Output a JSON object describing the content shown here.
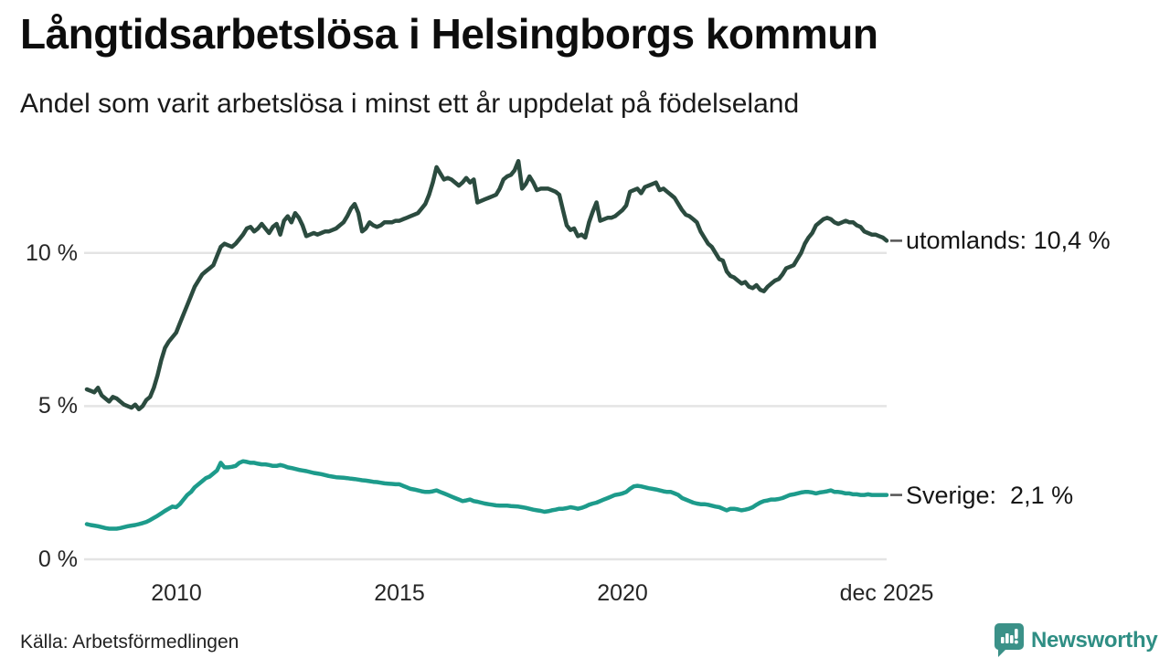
{
  "header": {
    "title": "Långtidsarbetslösa i Helsingborgs kommun",
    "subtitle": "Andel som varit arbetslösa i minst ett år uppdelat på födelseland"
  },
  "footer": {
    "source": "Källa: Arbetsförmedlingen",
    "brand": "Newsworthy"
  },
  "colors": {
    "grid": "#E4E4E4",
    "axis_text": "#262626",
    "label_dash": "#555555",
    "brand_teal": "#2F8E84",
    "logo_fill": "#3B9188"
  },
  "chart_data": {
    "type": "line",
    "title": "Långtidsarbetslösa i Helsingborgs kommun",
    "subtitle": "Andel som varit arbetslösa i minst ett år uppdelat på födelseland",
    "x_start": "2008-01",
    "x_end": "2025-12",
    "frequency": "monthly",
    "unit": "%",
    "ylim": [
      0,
      13.5
    ],
    "grid": "horizontal",
    "legend_position": "right-of-line-end",
    "yticks": [
      {
        "value": 0,
        "label": "0 %"
      },
      {
        "value": 5,
        "label": "5 %"
      },
      {
        "value": 10,
        "label": "10 %"
      }
    ],
    "xticks": [
      {
        "month_index": 24,
        "label": "2010"
      },
      {
        "month_index": 84,
        "label": "2015"
      },
      {
        "month_index": 144,
        "label": "2020"
      },
      {
        "month_index": 215,
        "label": "dec 2025"
      }
    ],
    "series": [
      {
        "name": "utomlands",
        "label": "utomlands: 10,4 %",
        "last_value": 10.4,
        "color": "#2B4B3F",
        "values": [
          5.55,
          5.5,
          5.45,
          5.6,
          5.35,
          5.25,
          5.15,
          5.3,
          5.25,
          5.15,
          5.05,
          5.0,
          4.95,
          5.05,
          4.9,
          5.0,
          5.2,
          5.3,
          5.6,
          6.0,
          6.5,
          6.9,
          7.1,
          7.25,
          7.4,
          7.7,
          8.0,
          8.3,
          8.6,
          8.9,
          9.1,
          9.3,
          9.4,
          9.5,
          9.6,
          9.9,
          10.2,
          10.3,
          10.25,
          10.2,
          10.3,
          10.45,
          10.6,
          10.8,
          10.85,
          10.7,
          10.8,
          10.95,
          10.8,
          10.65,
          10.85,
          10.95,
          10.6,
          11.05,
          11.2,
          11.0,
          11.3,
          11.15,
          10.9,
          10.55,
          10.6,
          10.65,
          10.6,
          10.65,
          10.7,
          10.7,
          10.75,
          10.8,
          10.9,
          11.0,
          11.2,
          11.45,
          11.6,
          11.3,
          10.7,
          10.8,
          11.0,
          10.9,
          10.85,
          10.9,
          11.0,
          11.0,
          11.0,
          11.05,
          11.05,
          11.1,
          11.15,
          11.2,
          11.25,
          11.3,
          11.45,
          11.6,
          11.9,
          12.3,
          12.8,
          12.6,
          12.4,
          12.45,
          12.4,
          12.3,
          12.2,
          12.3,
          12.45,
          12.3,
          12.4,
          11.65,
          11.7,
          11.75,
          11.8,
          11.85,
          11.9,
          12.1,
          12.4,
          12.5,
          12.55,
          12.7,
          13.0,
          12.1,
          12.25,
          12.5,
          12.3,
          12.05,
          12.1,
          12.1,
          12.1,
          12.05,
          12.0,
          11.9,
          11.4,
          10.9,
          10.75,
          10.8,
          10.55,
          10.6,
          10.5,
          11.0,
          11.35,
          11.65,
          11.05,
          11.1,
          11.15,
          11.15,
          11.2,
          11.3,
          11.4,
          11.55,
          12.0,
          12.05,
          12.1,
          11.95,
          12.15,
          12.2,
          12.25,
          12.3,
          12.05,
          12.1,
          12.0,
          11.9,
          11.8,
          11.6,
          11.4,
          11.25,
          11.2,
          11.1,
          11.0,
          10.7,
          10.5,
          10.3,
          10.2,
          10.0,
          9.8,
          9.75,
          9.4,
          9.25,
          9.2,
          9.1,
          9.0,
          9.05,
          8.9,
          8.85,
          8.95,
          8.8,
          8.75,
          8.9,
          9.0,
          9.1,
          9.15,
          9.3,
          9.5,
          9.55,
          9.6,
          9.8,
          10.0,
          10.3,
          10.5,
          10.65,
          10.9,
          11.0,
          11.1,
          11.15,
          11.1,
          11.0,
          10.95,
          11.0,
          11.05,
          11.0,
          11.0,
          10.9,
          10.85,
          10.7,
          10.65,
          10.6,
          10.6,
          10.55,
          10.5,
          10.4
        ]
      },
      {
        "name": "Sverige",
        "label": "Sverige:  2,1 %",
        "last_value": 2.1,
        "color": "#1D9B8B",
        "values": [
          1.15,
          1.12,
          1.1,
          1.08,
          1.05,
          1.02,
          1.0,
          1.0,
          1.0,
          1.02,
          1.05,
          1.08,
          1.1,
          1.12,
          1.15,
          1.18,
          1.22,
          1.28,
          1.35,
          1.42,
          1.5,
          1.58,
          1.65,
          1.72,
          1.7,
          1.8,
          1.95,
          2.1,
          2.2,
          2.35,
          2.45,
          2.55,
          2.65,
          2.7,
          2.8,
          2.9,
          3.15,
          3.0,
          3.0,
          3.02,
          3.05,
          3.15,
          3.2,
          3.18,
          3.15,
          3.15,
          3.12,
          3.1,
          3.1,
          3.08,
          3.05,
          3.05,
          3.08,
          3.05,
          3.0,
          2.98,
          2.95,
          2.92,
          2.9,
          2.88,
          2.85,
          2.82,
          2.8,
          2.78,
          2.75,
          2.72,
          2.7,
          2.68,
          2.67,
          2.66,
          2.65,
          2.63,
          2.62,
          2.6,
          2.58,
          2.57,
          2.55,
          2.53,
          2.52,
          2.5,
          2.48,
          2.47,
          2.46,
          2.45,
          2.45,
          2.4,
          2.35,
          2.3,
          2.28,
          2.25,
          2.22,
          2.2,
          2.2,
          2.22,
          2.25,
          2.2,
          2.15,
          2.1,
          2.05,
          2.0,
          1.95,
          1.9,
          1.92,
          1.95,
          1.9,
          1.88,
          1.85,
          1.82,
          1.8,
          1.78,
          1.76,
          1.75,
          1.75,
          1.75,
          1.74,
          1.73,
          1.72,
          1.7,
          1.68,
          1.65,
          1.62,
          1.6,
          1.58,
          1.55,
          1.57,
          1.6,
          1.62,
          1.65,
          1.65,
          1.67,
          1.7,
          1.68,
          1.65,
          1.68,
          1.72,
          1.78,
          1.82,
          1.85,
          1.9,
          1.95,
          2.0,
          2.05,
          2.1,
          2.12,
          2.15,
          2.2,
          2.3,
          2.38,
          2.4,
          2.38,
          2.35,
          2.32,
          2.3,
          2.28,
          2.25,
          2.22,
          2.2,
          2.2,
          2.15,
          2.1,
          2.0,
          1.95,
          1.9,
          1.85,
          1.82,
          1.8,
          1.8,
          1.78,
          1.75,
          1.72,
          1.7,
          1.65,
          1.6,
          1.65,
          1.65,
          1.63,
          1.6,
          1.62,
          1.65,
          1.7,
          1.78,
          1.85,
          1.9,
          1.92,
          1.95,
          1.95,
          1.97,
          2.0,
          2.05,
          2.1,
          2.12,
          2.15,
          2.18,
          2.2,
          2.2,
          2.18,
          2.15,
          2.18,
          2.2,
          2.22,
          2.25,
          2.2,
          2.2,
          2.18,
          2.15,
          2.15,
          2.12,
          2.12,
          2.1,
          2.1,
          2.12,
          2.1,
          2.1,
          2.1,
          2.1,
          2.1
        ]
      }
    ]
  }
}
